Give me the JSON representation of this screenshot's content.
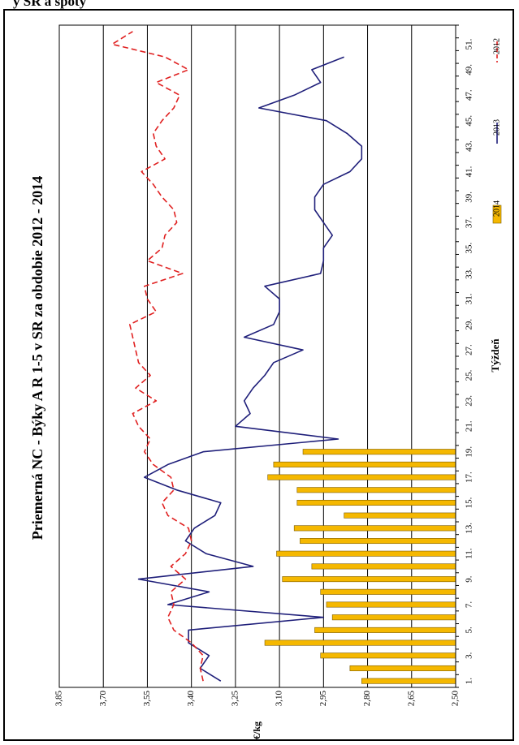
{
  "page_header": "y SR a spoty",
  "chart_data": {
    "type": "bar",
    "title": "Priemerná NC  -  Býky A R 1-5 v SR za obdobie 2012 - 2014",
    "xlabel": "Týždeň",
    "ylabel": "€/kg",
    "ylim": [
      2.5,
      3.85
    ],
    "yticks": [
      "2,50",
      "2,65",
      "2,80",
      "2,95",
      "3,10",
      "3,25",
      "3,40",
      "3,55",
      "3,70",
      "3,85"
    ],
    "categories": [
      "1.",
      "3.",
      "5.",
      "7.",
      "9.",
      "11.",
      "13.",
      "15.",
      "17.",
      "19.",
      "21.",
      "23.",
      "25.",
      "27.",
      "29.",
      "31.",
      "33.",
      "35.",
      "37.",
      "39.",
      "41.",
      "43.",
      "45.",
      "47.",
      "49.",
      "51."
    ],
    "grid": true,
    "legend_position": "bottom",
    "orientation": "rotated 90° counter-clockwise",
    "series": [
      {
        "name": "2014",
        "kind": "bar",
        "color": "#f5b800",
        "x": [
          1,
          2,
          3,
          4,
          5,
          6,
          7,
          8,
          9,
          10,
          11,
          12,
          13,
          14,
          15,
          16,
          17,
          18,
          19
        ],
        "values": [
          2.82,
          2.86,
          2.96,
          3.15,
          2.98,
          2.92,
          2.94,
          2.96,
          3.09,
          2.99,
          3.11,
          3.03,
          3.05,
          2.88,
          3.04,
          3.04,
          3.14,
          3.12,
          3.02
        ]
      },
      {
        "name": "2013",
        "kind": "line",
        "color": "#1f1f7a",
        "dash": "solid",
        "x": [
          1,
          2,
          3,
          4,
          5,
          6,
          7,
          8,
          9,
          10,
          11,
          12,
          13,
          14,
          15,
          16,
          17,
          18,
          19,
          20,
          21,
          22,
          23,
          24,
          25,
          26,
          27,
          28,
          29,
          30,
          31,
          32,
          33,
          34,
          35,
          36,
          37,
          38,
          39,
          40,
          41,
          42,
          43,
          44,
          45,
          46,
          47,
          48,
          49,
          50
        ],
        "values": [
          3.3,
          3.37,
          3.34,
          3.41,
          3.41,
          2.95,
          3.48,
          3.34,
          3.58,
          3.19,
          3.35,
          3.42,
          3.39,
          3.32,
          3.3,
          3.45,
          3.56,
          3.48,
          3.36,
          2.9,
          3.25,
          3.2,
          3.22,
          3.19,
          3.15,
          3.12,
          3.02,
          3.22,
          3.12,
          3.1,
          3.1,
          3.15,
          2.96,
          2.95,
          2.95,
          2.92,
          2.95,
          2.98,
          2.98,
          2.95,
          2.86,
          2.82,
          2.82,
          2.87,
          2.94,
          3.17,
          3.05,
          2.96,
          2.99,
          2.88
        ]
      },
      {
        "name": "2012",
        "kind": "line",
        "color": "#e02020",
        "dash": "dashed",
        "x": [
          1,
          2,
          3,
          4,
          5,
          6,
          7,
          8,
          9,
          10,
          11,
          12,
          13,
          14,
          15,
          16,
          17,
          18,
          19,
          20,
          21,
          22,
          23,
          24,
          25,
          26,
          27,
          28,
          29,
          30,
          31,
          32,
          33,
          34,
          35,
          36,
          37,
          38,
          39,
          40,
          41,
          42,
          43,
          44,
          45,
          46,
          47,
          48,
          49,
          50,
          51,
          52
        ],
        "values": [
          3.36,
          3.37,
          3.36,
          3.4,
          3.46,
          3.48,
          3.46,
          3.47,
          3.42,
          3.47,
          3.42,
          3.4,
          3.41,
          3.48,
          3.5,
          3.46,
          3.47,
          3.53,
          3.56,
          3.54,
          3.58,
          3.6,
          3.52,
          3.59,
          3.54,
          3.58,
          3.59,
          3.6,
          3.61,
          3.52,
          3.55,
          3.56,
          3.43,
          3.55,
          3.5,
          3.49,
          3.45,
          3.46,
          3.5,
          3.53,
          3.57,
          3.49,
          3.52,
          3.53,
          3.5,
          3.46,
          3.44,
          3.52,
          3.41,
          3.49,
          3.67,
          3.6
        ]
      }
    ]
  }
}
